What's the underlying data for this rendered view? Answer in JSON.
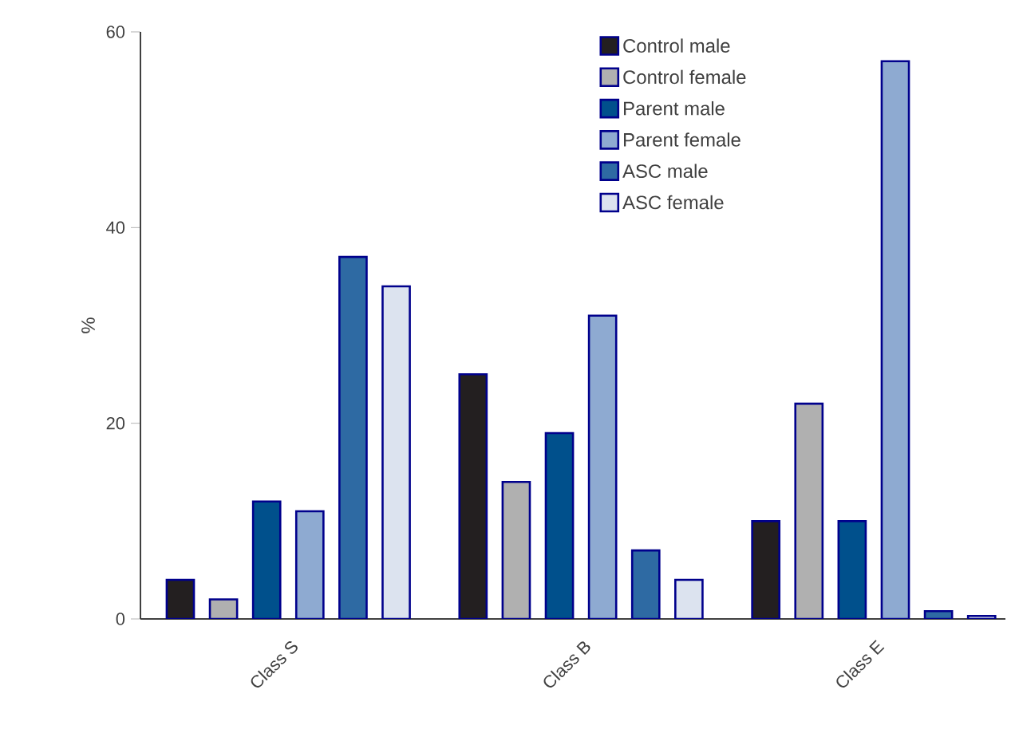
{
  "chart_data": {
    "type": "bar",
    "ylabel": "%",
    "categories": [
      "Class S",
      "Class B",
      "Class E"
    ],
    "series": [
      {
        "name": "Control male",
        "color": "#231f20",
        "values": [
          4,
          25,
          10
        ]
      },
      {
        "name": "Control female",
        "color": "#b0b0b0",
        "values": [
          2,
          14,
          22
        ]
      },
      {
        "name": "Parent male",
        "color": "#00508c",
        "values": [
          12,
          19,
          10
        ]
      },
      {
        "name": "Parent female",
        "color": "#8eaad1",
        "values": [
          11,
          31,
          57
        ]
      },
      {
        "name": "ASC male",
        "color": "#2e6aa3",
        "values": [
          37,
          7,
          0.8
        ]
      },
      {
        "name": "ASC female",
        "color": "#dce3ef",
        "values": [
          34,
          4,
          0.3
        ]
      }
    ],
    "ylim": [
      0,
      60
    ],
    "yticks": [
      0,
      20,
      40,
      60
    ],
    "grid": false,
    "legend": "top right"
  }
}
